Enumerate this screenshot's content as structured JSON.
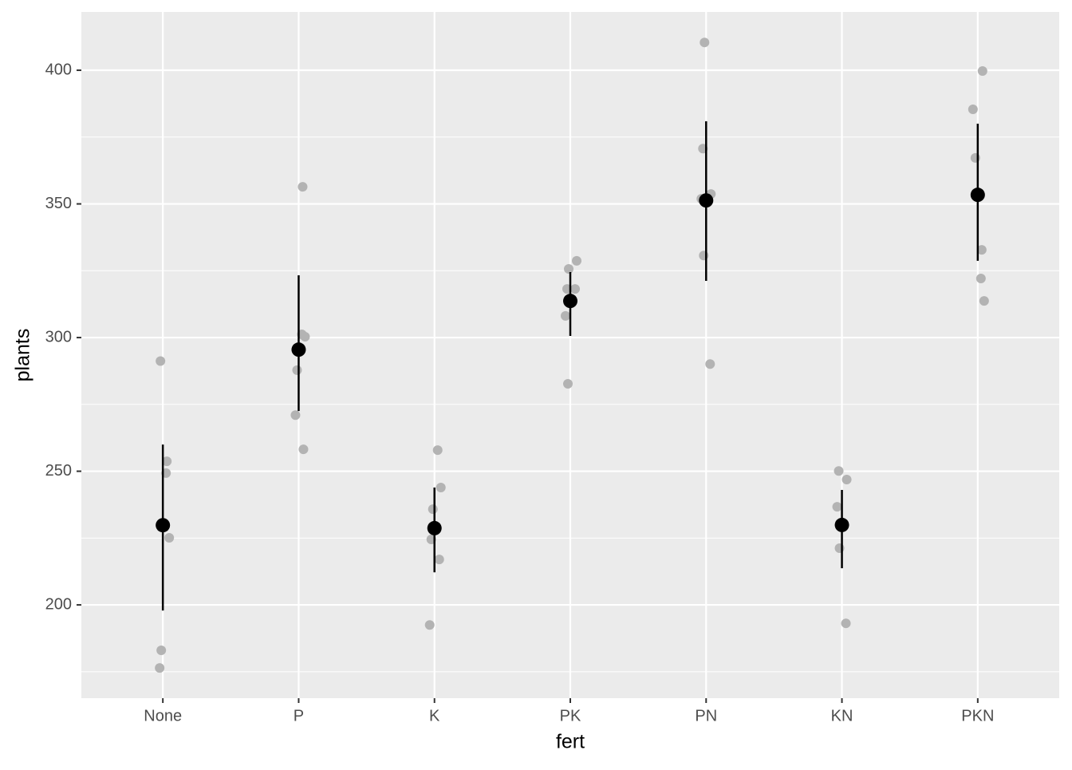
{
  "chart_data": {
    "type": "pointrange",
    "x_label": "fert",
    "y_label": "plants",
    "categories": [
      "None",
      "P",
      "K",
      "PK",
      "PN",
      "KN",
      "PKN"
    ],
    "points": [
      [
        291.2,
        253.7,
        249.3,
        225.1,
        183.0,
        176.4
      ],
      [
        356.4,
        301.2,
        300.3,
        287.8,
        271.0,
        258.2
      ],
      [
        257.9,
        243.9,
        235.8,
        224.5,
        217.0,
        192.5
      ],
      [
        328.7,
        325.7,
        318.2,
        318.2,
        308.1,
        282.7
      ],
      [
        410.4,
        370.7,
        353.7,
        351.9,
        330.7,
        290.1
      ],
      [
        250.1,
        246.9,
        236.7,
        221.2,
        193.1
      ],
      [
        399.7,
        385.4,
        367.2,
        332.8,
        322.1,
        313.7
      ]
    ],
    "means": [
      229.8,
      295.5,
      228.7,
      313.7,
      351.3,
      229.9,
      353.4
    ],
    "lower": [
      197.9,
      272.5,
      212.2,
      300.6,
      321.2,
      213.7,
      328.7
    ],
    "upper": [
      260.0,
      323.3,
      243.9,
      324.5,
      380.9,
      243.0,
      380.0
    ],
    "point_color": "#b3b3b3",
    "mean_color": "#000000",
    "ylim": [
      165.1,
      421.8
    ],
    "yticks": [
      200,
      250,
      300,
      350,
      400
    ],
    "grid": true
  }
}
